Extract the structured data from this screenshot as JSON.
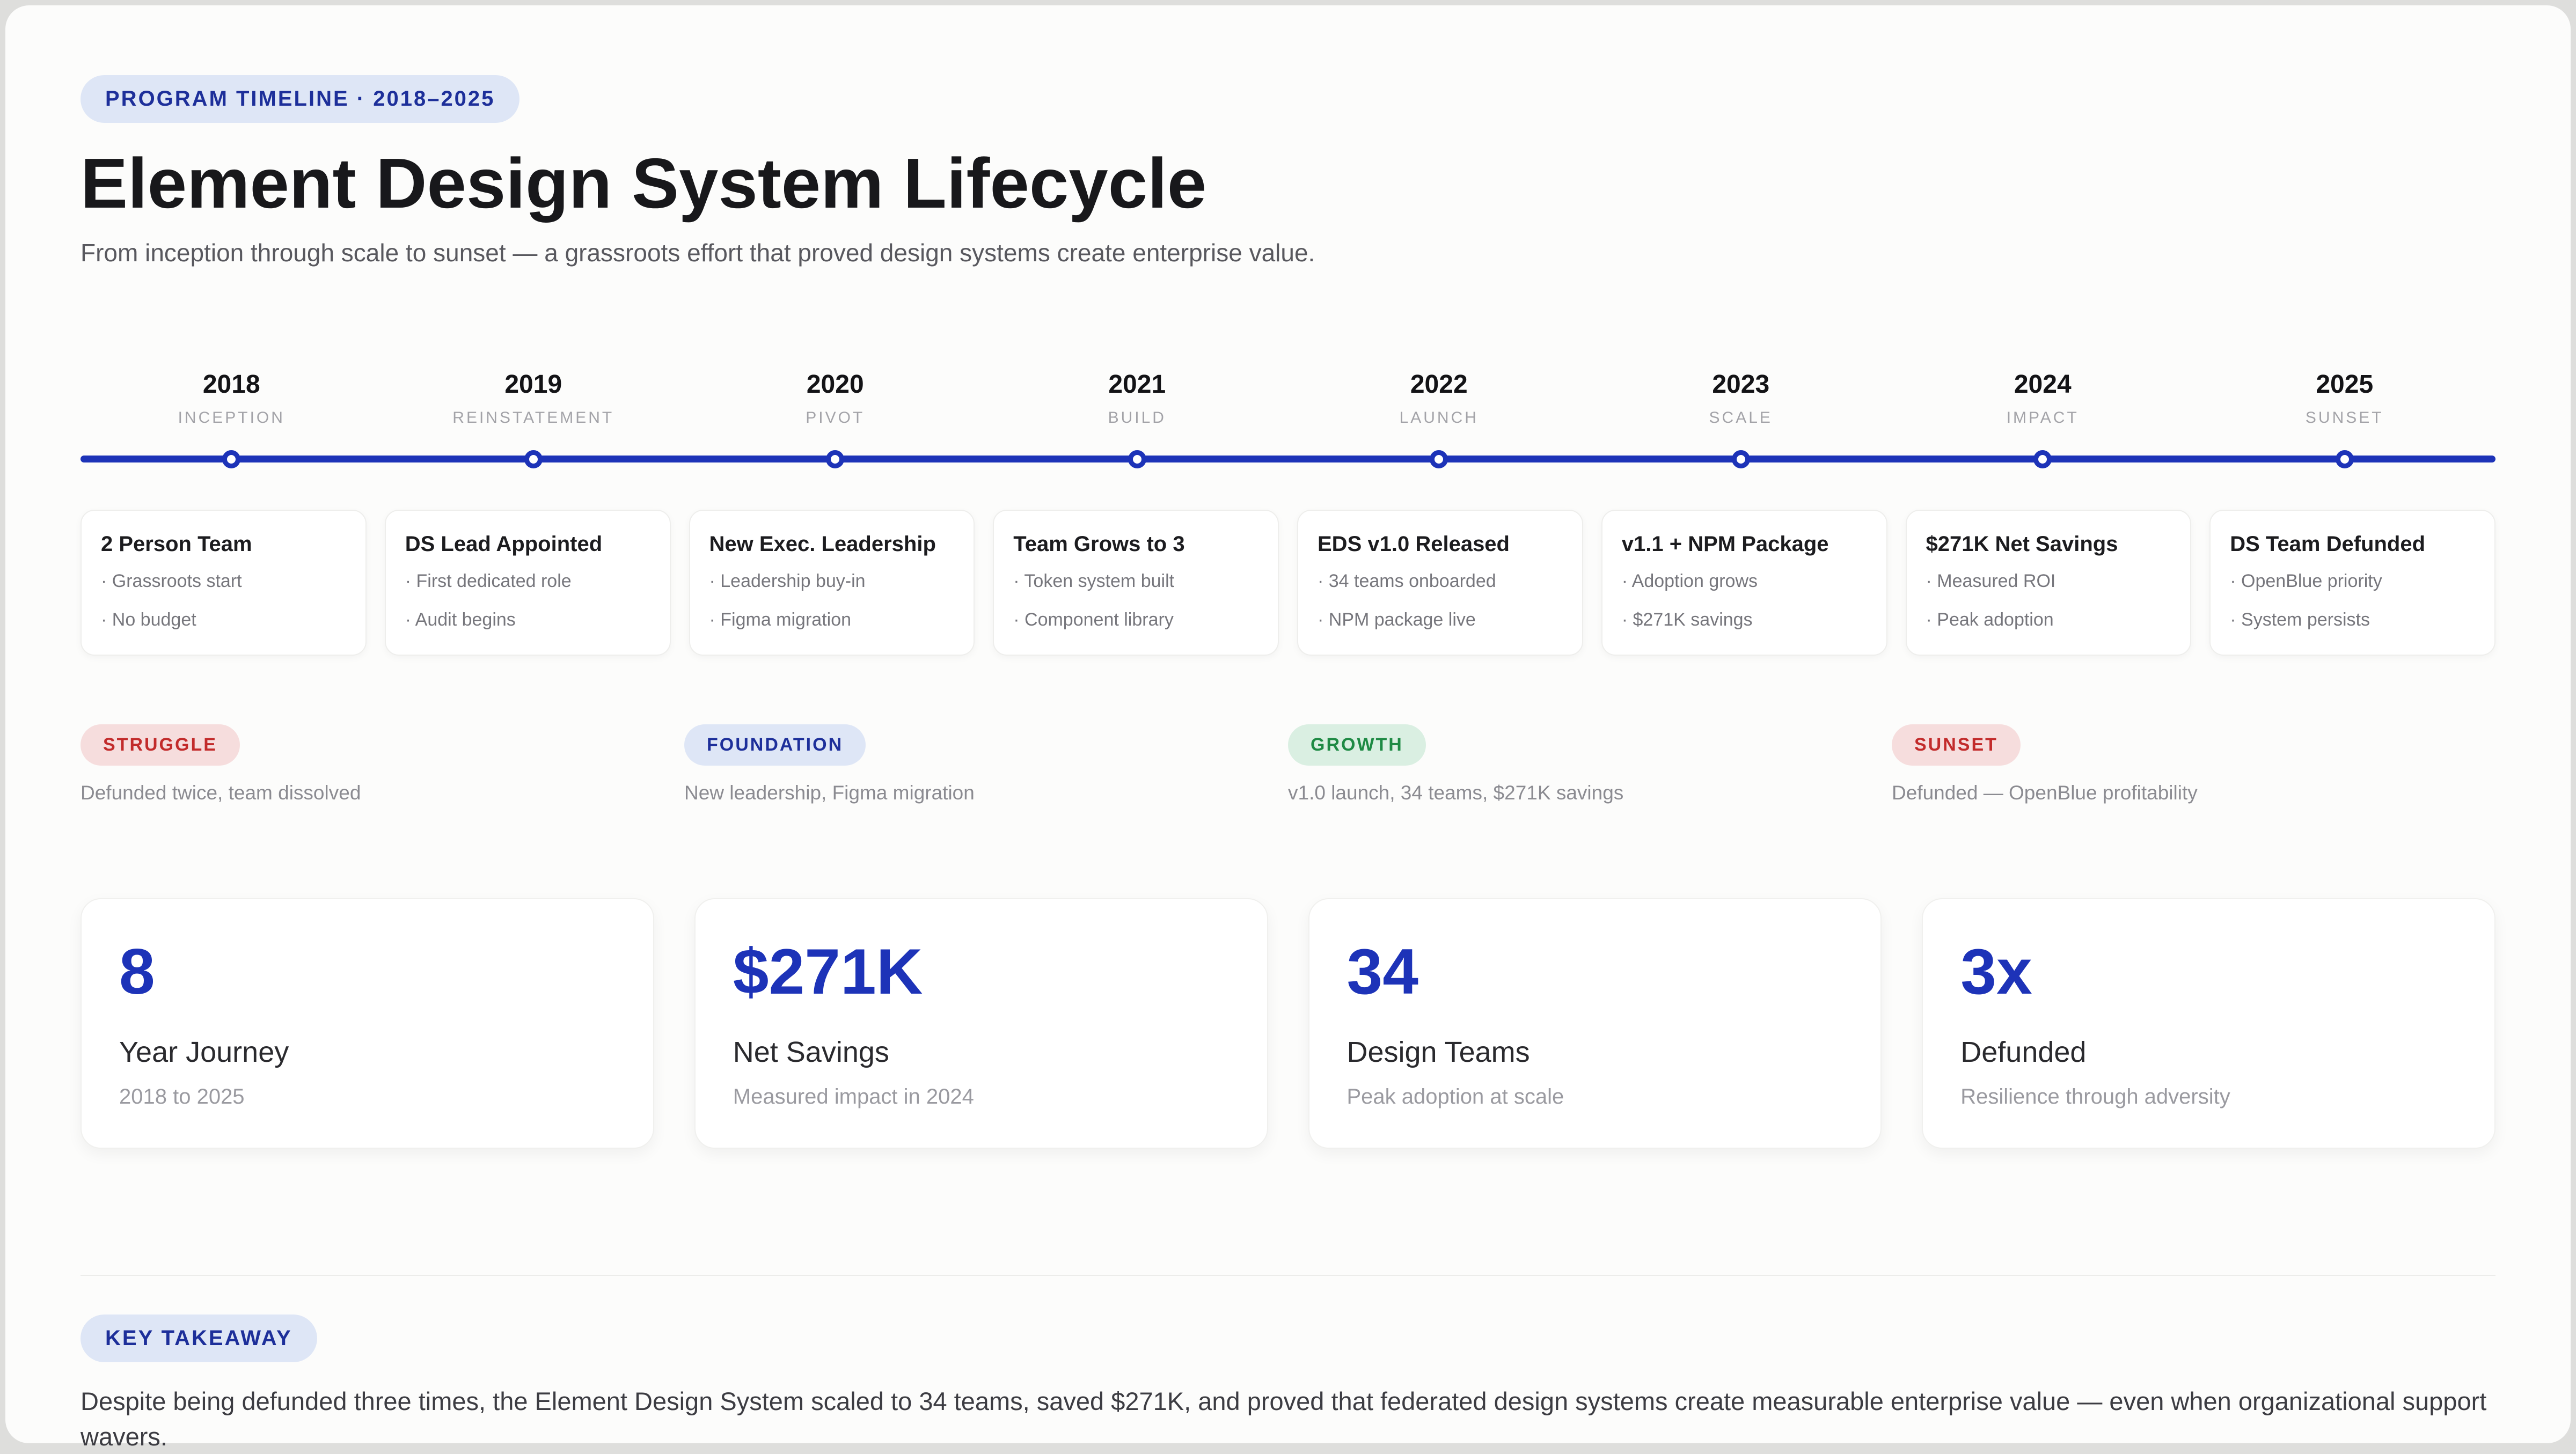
{
  "header": {
    "badge": "PROGRAM TIMELINE · 2018–2025",
    "title": "Element Design System Lifecycle",
    "subtitle": "From inception through scale to sunset — a grassroots effort that proved design systems create enterprise value."
  },
  "timeline": {
    "milestones": [
      {
        "year": "2018",
        "phase": "INCEPTION",
        "card_title": "2 Person Team",
        "bullets": [
          "· Grassroots start",
          "· No budget"
        ]
      },
      {
        "year": "2019",
        "phase": "REINSTATEMENT",
        "card_title": "DS Lead Appointed",
        "bullets": [
          "· First dedicated role",
          "· Audit begins"
        ]
      },
      {
        "year": "2020",
        "phase": "PIVOT",
        "card_title": "New Exec. Leadership",
        "bullets": [
          "· Leadership buy-in",
          "· Figma migration"
        ]
      },
      {
        "year": "2021",
        "phase": "BUILD",
        "card_title": "Team Grows to 3",
        "bullets": [
          "· Token system built",
          "· Component library"
        ]
      },
      {
        "year": "2022",
        "phase": "LAUNCH",
        "card_title": "EDS v1.0 Released",
        "bullets": [
          "· 34 teams onboarded",
          "· NPM package live"
        ]
      },
      {
        "year": "2023",
        "phase": "SCALE",
        "card_title": "v1.1 + NPM Package",
        "bullets": [
          "· Adoption grows",
          "· $271K savings"
        ]
      },
      {
        "year": "2024",
        "phase": "IMPACT",
        "card_title": "$271K Net Savings",
        "bullets": [
          "· Measured ROI",
          "· Peak adoption"
        ]
      },
      {
        "year": "2025",
        "phase": "SUNSET",
        "card_title": "DS Team Defunded",
        "bullets": [
          "· OpenBlue priority",
          "· System persists"
        ]
      }
    ]
  },
  "phases": [
    {
      "label": "STRUGGLE",
      "description": "Defunded twice, team dissolved",
      "text_color": "#c22b2b",
      "bg_color": "#f6dddd"
    },
    {
      "label": "FOUNDATION",
      "description": "New leadership, Figma migration",
      "text_color": "#1d2f9a",
      "bg_color": "#dee6f6"
    },
    {
      "label": "GROWTH",
      "description": "v1.0 launch, 34 teams, $271K savings",
      "text_color": "#1e8a44",
      "bg_color": "#daefe2"
    },
    {
      "label": "SUNSET",
      "description": "Defunded — OpenBlue profitability",
      "text_color": "#c22b2b",
      "bg_color": "#f6dddd"
    }
  ],
  "stats": [
    {
      "value": "8",
      "label": "Year Journey",
      "sub": "2018 to 2025"
    },
    {
      "value": "$271K",
      "label": "Net Savings",
      "sub": "Measured impact in 2024"
    },
    {
      "value": "34",
      "label": "Design Teams",
      "sub": "Peak adoption at scale"
    },
    {
      "value": "3x",
      "label": "Defunded",
      "sub": "Resilience through adversity"
    }
  ],
  "takeaway": {
    "badge": "KEY TAKEAWAY",
    "text": "Despite being defunded three times, the Element Design System scaled to 34 teams, saved $271K, and proved that federated design systems create measurable enterprise value — even when organizational support wavers."
  },
  "colors": {
    "accent_blue": "#1d33b8",
    "page_background": "#dededc",
    "panel_background": "#fcfcfb",
    "badge_blue_bg": "#dee6f6",
    "badge_blue_text": "#1d2f9a"
  }
}
